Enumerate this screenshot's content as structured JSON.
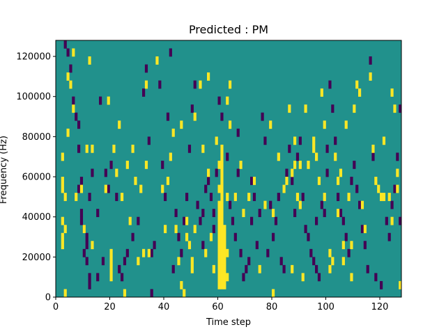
{
  "chart_data": {
    "type": "heatmap",
    "title": "Predicted : PM",
    "xlabel": "Time step",
    "ylabel": "Frequency (Hz)",
    "xlim": [
      0,
      128
    ],
    "ylim": [
      0,
      128000
    ],
    "xticks": [
      0,
      20,
      40,
      60,
      80,
      100,
      120
    ],
    "yticks": [
      0,
      20000,
      40000,
      60000,
      80000,
      100000,
      120000
    ],
    "xtick_labels": [
      "0",
      "20",
      "40",
      "60",
      "80",
      "100",
      "120"
    ],
    "ytick_labels": [
      "0",
      "20000",
      "40000",
      "60000",
      "80000",
      "100000",
      "120000"
    ],
    "grid": false,
    "legend": "none",
    "background_value": "mid",
    "colors": {
      "low": "#440154",
      "mid": "#21918c",
      "high": "#fde725"
    },
    "cell_width": 1,
    "cell_height": 4000,
    "high_cells": [
      [
        2,
        56000
      ],
      [
        2,
        52000
      ],
      [
        3,
        48000
      ],
      [
        2,
        36000
      ],
      [
        3,
        32000
      ],
      [
        2,
        28000
      ],
      [
        2,
        24000
      ],
      [
        3,
        0
      ],
      [
        2,
        68000
      ],
      [
        4,
        80000
      ],
      [
        5,
        104000
      ],
      [
        4,
        108000
      ],
      [
        6,
        120000
      ],
      [
        7,
        48000
      ],
      [
        6,
        92000
      ],
      [
        9,
        52000
      ],
      [
        10,
        32000
      ],
      [
        11,
        72000
      ],
      [
        12,
        116000
      ],
      [
        13,
        72000
      ],
      [
        13,
        24000
      ],
      [
        18,
        52000
      ],
      [
        19,
        96000
      ],
      [
        20,
        16000
      ],
      [
        20,
        12000
      ],
      [
        20,
        8000
      ],
      [
        20,
        20000
      ],
      [
        21,
        72000
      ],
      [
        23,
        84000
      ],
      [
        22,
        60000
      ],
      [
        24,
        48000
      ],
      [
        25,
        0
      ],
      [
        26,
        64000
      ],
      [
        27,
        36000
      ],
      [
        28,
        72000
      ],
      [
        29,
        56000
      ],
      [
        30,
        16000
      ],
      [
        31,
        52000
      ],
      [
        32,
        20000
      ],
      [
        33,
        64000
      ],
      [
        34,
        20000
      ],
      [
        33,
        104000
      ],
      [
        37,
        116000
      ],
      [
        39,
        52000
      ],
      [
        40,
        32000
      ],
      [
        41,
        56000
      ],
      [
        42,
        68000
      ],
      [
        43,
        80000
      ],
      [
        44,
        32000
      ],
      [
        45,
        16000
      ],
      [
        46,
        84000
      ],
      [
        46,
        4000
      ],
      [
        47,
        0
      ],
      [
        48,
        28000
      ],
      [
        49,
        24000
      ],
      [
        48,
        36000
      ],
      [
        51,
        32000
      ],
      [
        50,
        16000
      ],
      [
        50,
        12000
      ],
      [
        51,
        88000
      ],
      [
        53,
        104000
      ],
      [
        54,
        72000
      ],
      [
        55,
        20000
      ],
      [
        56,
        108000
      ],
      [
        56,
        60000
      ],
      [
        57,
        28000
      ],
      [
        58,
        12000
      ],
      [
        59,
        76000
      ],
      [
        60,
        64000
      ],
      [
        60,
        52000
      ],
      [
        60,
        44000
      ],
      [
        60,
        40000
      ],
      [
        60,
        36000
      ],
      [
        60,
        32000
      ],
      [
        60,
        28000
      ],
      [
        60,
        24000
      ],
      [
        60,
        20000
      ],
      [
        60,
        16000
      ],
      [
        60,
        12000
      ],
      [
        60,
        8000
      ],
      [
        60,
        4000
      ],
      [
        61,
        72000
      ],
      [
        61,
        68000
      ],
      [
        61,
        64000
      ],
      [
        61,
        60000
      ],
      [
        61,
        56000
      ],
      [
        61,
        52000
      ],
      [
        61,
        48000
      ],
      [
        61,
        44000
      ],
      [
        61,
        40000
      ],
      [
        61,
        36000
      ],
      [
        61,
        32000
      ],
      [
        61,
        28000
      ],
      [
        61,
        24000
      ],
      [
        61,
        20000
      ],
      [
        61,
        16000
      ],
      [
        61,
        12000
      ],
      [
        61,
        8000
      ],
      [
        61,
        4000
      ],
      [
        62,
        32000
      ],
      [
        62,
        28000
      ],
      [
        62,
        24000
      ],
      [
        62,
        20000
      ],
      [
        62,
        16000
      ],
      [
        62,
        12000
      ],
      [
        62,
        8000
      ],
      [
        62,
        4000
      ],
      [
        63,
        48000
      ],
      [
        63,
        20000
      ],
      [
        63,
        8000
      ],
      [
        64,
        104000
      ],
      [
        63,
        96000
      ],
      [
        64,
        84000
      ],
      [
        66,
        48000
      ],
      [
        68,
        64000
      ],
      [
        69,
        40000
      ],
      [
        71,
        48000
      ],
      [
        73,
        56000
      ],
      [
        75,
        12000
      ],
      [
        77,
        44000
      ],
      [
        79,
        84000
      ],
      [
        80,
        0
      ],
      [
        80,
        40000
      ],
      [
        82,
        68000
      ],
      [
        84,
        52000
      ],
      [
        85,
        56000
      ],
      [
        86,
        92000
      ],
      [
        87,
        60000
      ],
      [
        87,
        12000
      ],
      [
        88,
        64000
      ],
      [
        88,
        76000
      ],
      [
        89,
        48000
      ],
      [
        90,
        44000
      ],
      [
        90,
        64000
      ],
      [
        91,
        8000
      ],
      [
        92,
        92000
      ],
      [
        93,
        64000
      ],
      [
        96,
        68000
      ],
      [
        95,
        72000
      ],
      [
        95,
        76000
      ],
      [
        97,
        56000
      ],
      [
        98,
        100000
      ],
      [
        99,
        84000
      ],
      [
        99,
        48000
      ],
      [
        101,
        20000
      ],
      [
        101,
        12000
      ],
      [
        102,
        16000
      ],
      [
        103,
        68000
      ],
      [
        104,
        56000
      ],
      [
        104,
        40000
      ],
      [
        105,
        60000
      ],
      [
        106,
        24000
      ],
      [
        106,
        16000
      ],
      [
        107,
        84000
      ],
      [
        108,
        48000
      ],
      [
        109,
        24000
      ],
      [
        109,
        8000
      ],
      [
        110,
        92000
      ],
      [
        111,
        104000
      ],
      [
        112,
        100000
      ],
      [
        113,
        44000
      ],
      [
        114,
        32000
      ],
      [
        116,
        108000
      ],
      [
        117,
        72000
      ],
      [
        118,
        56000
      ],
      [
        119,
        52000
      ],
      [
        120,
        48000
      ],
      [
        121,
        48000
      ],
      [
        121,
        76000
      ],
      [
        123,
        48000
      ],
      [
        124,
        36000
      ],
      [
        124,
        100000
      ],
      [
        125,
        92000
      ],
      [
        126,
        52000
      ],
      [
        126,
        60000
      ],
      [
        127,
        4000
      ]
    ],
    "low_cells": [
      [
        3,
        124000
      ],
      [
        4,
        120000
      ],
      [
        5,
        112000
      ],
      [
        6,
        96000
      ],
      [
        7,
        88000
      ],
      [
        8,
        84000
      ],
      [
        8,
        72000
      ],
      [
        9,
        56000
      ],
      [
        8,
        52000
      ],
      [
        9,
        40000
      ],
      [
        9,
        36000
      ],
      [
        10,
        32000
      ],
      [
        11,
        28000
      ],
      [
        11,
        24000
      ],
      [
        10,
        20000
      ],
      [
        11,
        16000
      ],
      [
        12,
        8000
      ],
      [
        12,
        4000
      ],
      [
        13,
        60000
      ],
      [
        12,
        48000
      ],
      [
        15,
        40000
      ],
      [
        15,
        8000
      ],
      [
        16,
        96000
      ],
      [
        17,
        16000
      ],
      [
        18,
        60000
      ],
      [
        19,
        52000
      ],
      [
        20,
        64000
      ],
      [
        22,
        48000
      ],
      [
        23,
        12000
      ],
      [
        24,
        8000
      ],
      [
        25,
        16000
      ],
      [
        26,
        20000
      ],
      [
        28,
        28000
      ],
      [
        30,
        36000
      ],
      [
        32,
        100000
      ],
      [
        33,
        112000
      ],
      [
        34,
        76000
      ],
      [
        35,
        20000
      ],
      [
        35,
        0
      ],
      [
        36,
        24000
      ],
      [
        38,
        104000
      ],
      [
        39,
        64000
      ],
      [
        40,
        48000
      ],
      [
        41,
        88000
      ],
      [
        42,
        120000
      ],
      [
        43,
        12000
      ],
      [
        44,
        40000
      ],
      [
        45,
        28000
      ],
      [
        46,
        20000
      ],
      [
        47,
        36000
      ],
      [
        48,
        48000
      ],
      [
        49,
        72000
      ],
      [
        50,
        92000
      ],
      [
        51,
        104000
      ],
      [
        52,
        44000
      ],
      [
        53,
        36000
      ],
      [
        54,
        24000
      ],
      [
        54,
        40000
      ],
      [
        55,
        52000
      ],
      [
        56,
        56000
      ],
      [
        57,
        48000
      ],
      [
        58,
        40000
      ],
      [
        58,
        32000
      ],
      [
        59,
        60000
      ],
      [
        60,
        96000
      ],
      [
        61,
        88000
      ],
      [
        63,
        68000
      ],
      [
        64,
        44000
      ],
      [
        65,
        36000
      ],
      [
        66,
        28000
      ],
      [
        67,
        60000
      ],
      [
        67,
        80000
      ],
      [
        68,
        20000
      ],
      [
        69,
        8000
      ],
      [
        70,
        12000
      ],
      [
        71,
        16000
      ],
      [
        72,
        36000
      ],
      [
        72,
        56000
      ],
      [
        73,
        48000
      ],
      [
        74,
        24000
      ],
      [
        75,
        40000
      ],
      [
        76,
        88000
      ],
      [
        77,
        76000
      ],
      [
        78,
        20000
      ],
      [
        79,
        44000
      ],
      [
        80,
        28000
      ],
      [
        81,
        36000
      ],
      [
        82,
        48000
      ],
      [
        83,
        16000
      ],
      [
        84,
        12000
      ],
      [
        85,
        60000
      ],
      [
        86,
        72000
      ],
      [
        87,
        56000
      ],
      [
        88,
        40000
      ],
      [
        89,
        68000
      ],
      [
        90,
        76000
      ],
      [
        91,
        48000
      ],
      [
        92,
        32000
      ],
      [
        93,
        28000
      ],
      [
        94,
        20000
      ],
      [
        95,
        16000
      ],
      [
        96,
        12000
      ],
      [
        96,
        36000
      ],
      [
        97,
        8000
      ],
      [
        98,
        44000
      ],
      [
        99,
        40000
      ],
      [
        100,
        60000
      ],
      [
        100,
        72000
      ],
      [
        101,
        104000
      ],
      [
        102,
        92000
      ],
      [
        103,
        76000
      ],
      [
        104,
        48000
      ],
      [
        105,
        40000
      ],
      [
        106,
        36000
      ],
      [
        107,
        28000
      ],
      [
        108,
        20000
      ],
      [
        109,
        56000
      ],
      [
        110,
        64000
      ],
      [
        111,
        52000
      ],
      [
        112,
        44000
      ],
      [
        113,
        32000
      ],
      [
        114,
        24000
      ],
      [
        115,
        12000
      ],
      [
        116,
        116000
      ],
      [
        117,
        68000
      ],
      [
        118,
        8000
      ],
      [
        120,
        4000
      ],
      [
        122,
        36000
      ],
      [
        123,
        28000
      ],
      [
        124,
        44000
      ],
      [
        125,
        52000
      ],
      [
        126,
        68000
      ],
      [
        127,
        92000
      ],
      [
        127,
        36000
      ]
    ]
  }
}
